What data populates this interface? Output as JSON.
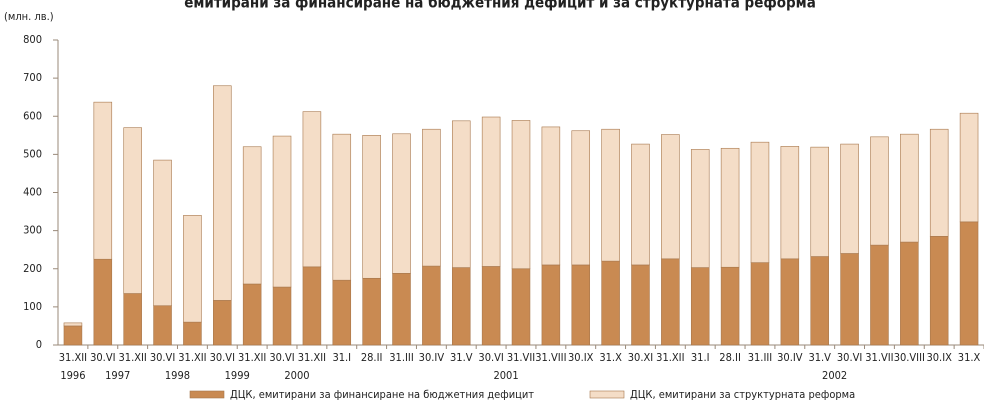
{
  "chart_data": {
    "type": "stacked_bar",
    "title": "емитирани за финансиране на бюджетния дефицит и за структурната реформа",
    "y_unit": "(млн. лв.)",
    "groups": [
      {
        "label": "1996",
        "categories": [
          "31.XII"
        ]
      },
      {
        "label": "1997",
        "categories": [
          "30.VI",
          "31.XII"
        ]
      },
      {
        "label": "1998",
        "categories": [
          "30.VI",
          "31.XII"
        ]
      },
      {
        "label": "1999",
        "categories": [
          "30.VI",
          "31.XII"
        ]
      },
      {
        "label": "2000",
        "categories": [
          "30.VI",
          "31.XII"
        ]
      },
      {
        "label": "2001",
        "categories": [
          "31.I",
          "28.II",
          "31.III",
          "30.IV",
          "31.V",
          "30.VI",
          "31.VII",
          "31.VIII",
          "30.IX",
          "31.X",
          "30.XI",
          "31.XII"
        ]
      },
      {
        "label": "2002",
        "categories": [
          "31.I",
          "28.II",
          "31.III",
          "30.IV",
          "31.V",
          "30.VI",
          "31.VII",
          "30.VIII",
          "30.IX",
          "31.X"
        ]
      }
    ],
    "series": [
      {
        "name": "ДЦК, емитирани за финансиране на бюджетния дефицит",
        "color": "#c98a52",
        "values": [
          50,
          225,
          135,
          103,
          60,
          117,
          160,
          152,
          205,
          170,
          175,
          188,
          207,
          203,
          206,
          200,
          210,
          210,
          220,
          210,
          226,
          203,
          204,
          216,
          226,
          232,
          240,
          262,
          270,
          285,
          323
        ]
      },
      {
        "name": "ДЦК, емитирани за структурната реформа",
        "color": "#f4ddc7",
        "values": [
          8,
          412,
          435,
          382,
          280,
          563,
          360,
          396,
          407,
          383,
          375,
          366,
          359,
          385,
          392,
          389,
          362,
          352,
          346,
          317,
          326,
          310,
          312,
          316,
          295,
          287,
          287,
          284,
          283,
          281,
          285
        ]
      }
    ],
    "ylim": [
      0,
      800
    ],
    "yticks": [
      0,
      100,
      200,
      300,
      400,
      500,
      600,
      700,
      800
    ]
  }
}
